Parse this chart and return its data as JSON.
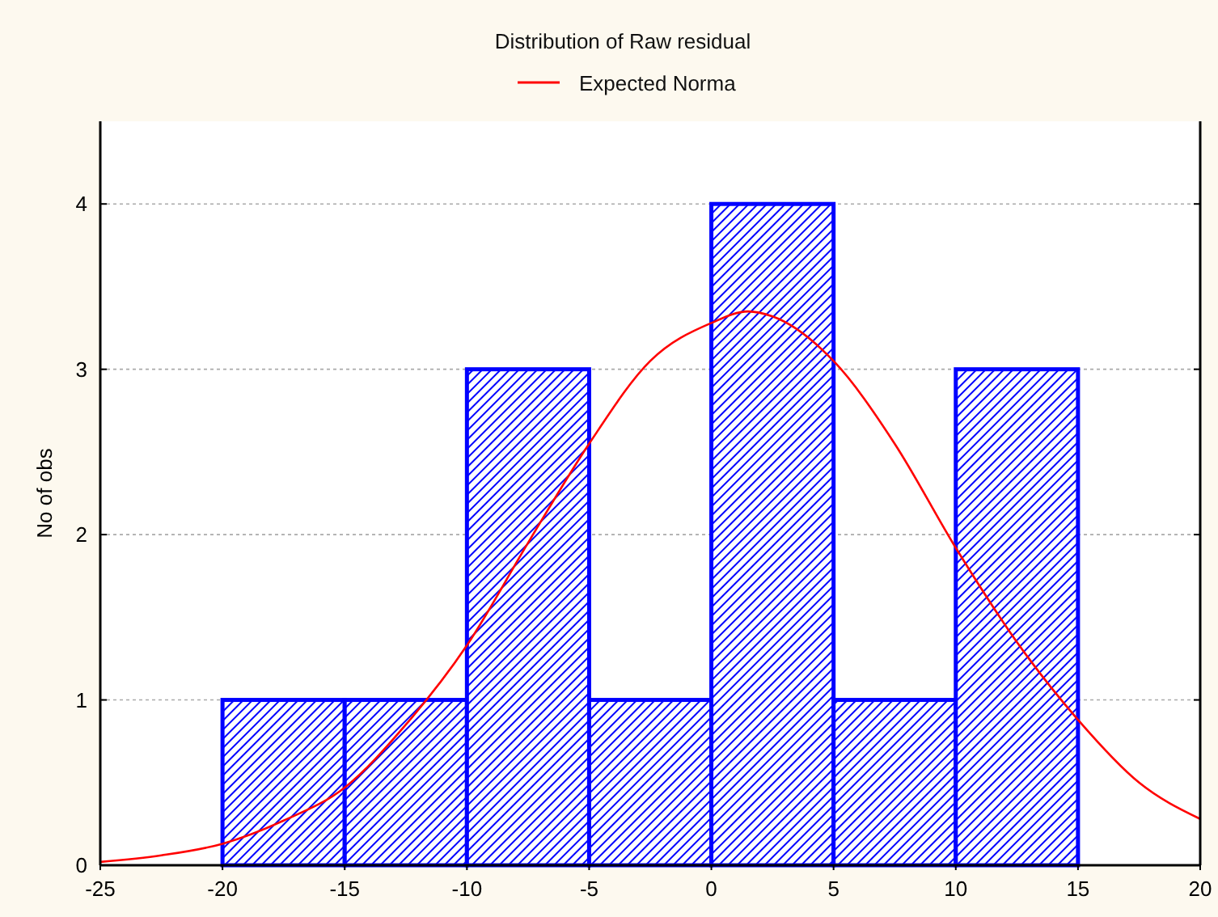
{
  "chart_data": {
    "type": "histogram",
    "title": "Distribution of Raw residual",
    "ylabel": "No of obs",
    "bins": [
      -20,
      -15,
      -10,
      -5,
      0,
      5,
      10,
      15
    ],
    "values": [
      1,
      1,
      3,
      1,
      4,
      1,
      3
    ],
    "color": "#0000ff",
    "series": [
      {
        "type": "line",
        "name": "Expected Norma",
        "color": "#ff0000",
        "x": [
          -25,
          -22.5,
          -20,
          -17.5,
          -15,
          -12.5,
          -10,
          -7.5,
          -5,
          -2.5,
          0,
          1.5,
          2.5,
          5,
          7.5,
          10,
          12.5,
          15,
          17.5,
          20
        ],
        "values": [
          0.02,
          0.06,
          0.13,
          0.27,
          0.47,
          0.85,
          1.33,
          1.95,
          2.55,
          3.05,
          3.28,
          3.35,
          3.32,
          3.05,
          2.55,
          1.92,
          1.35,
          0.88,
          0.5,
          0.28
        ]
      }
    ],
    "xlim": [
      -25,
      20
    ],
    "xticks": [
      -25,
      -20,
      -15,
      -10,
      -5,
      0,
      5,
      10,
      15,
      20
    ],
    "ylim": [
      0,
      4.5
    ],
    "yticks": [
      0,
      1,
      2,
      3,
      4
    ],
    "grid": "y",
    "legend": "top",
    "marker": "none",
    "line_style": "solid"
  }
}
